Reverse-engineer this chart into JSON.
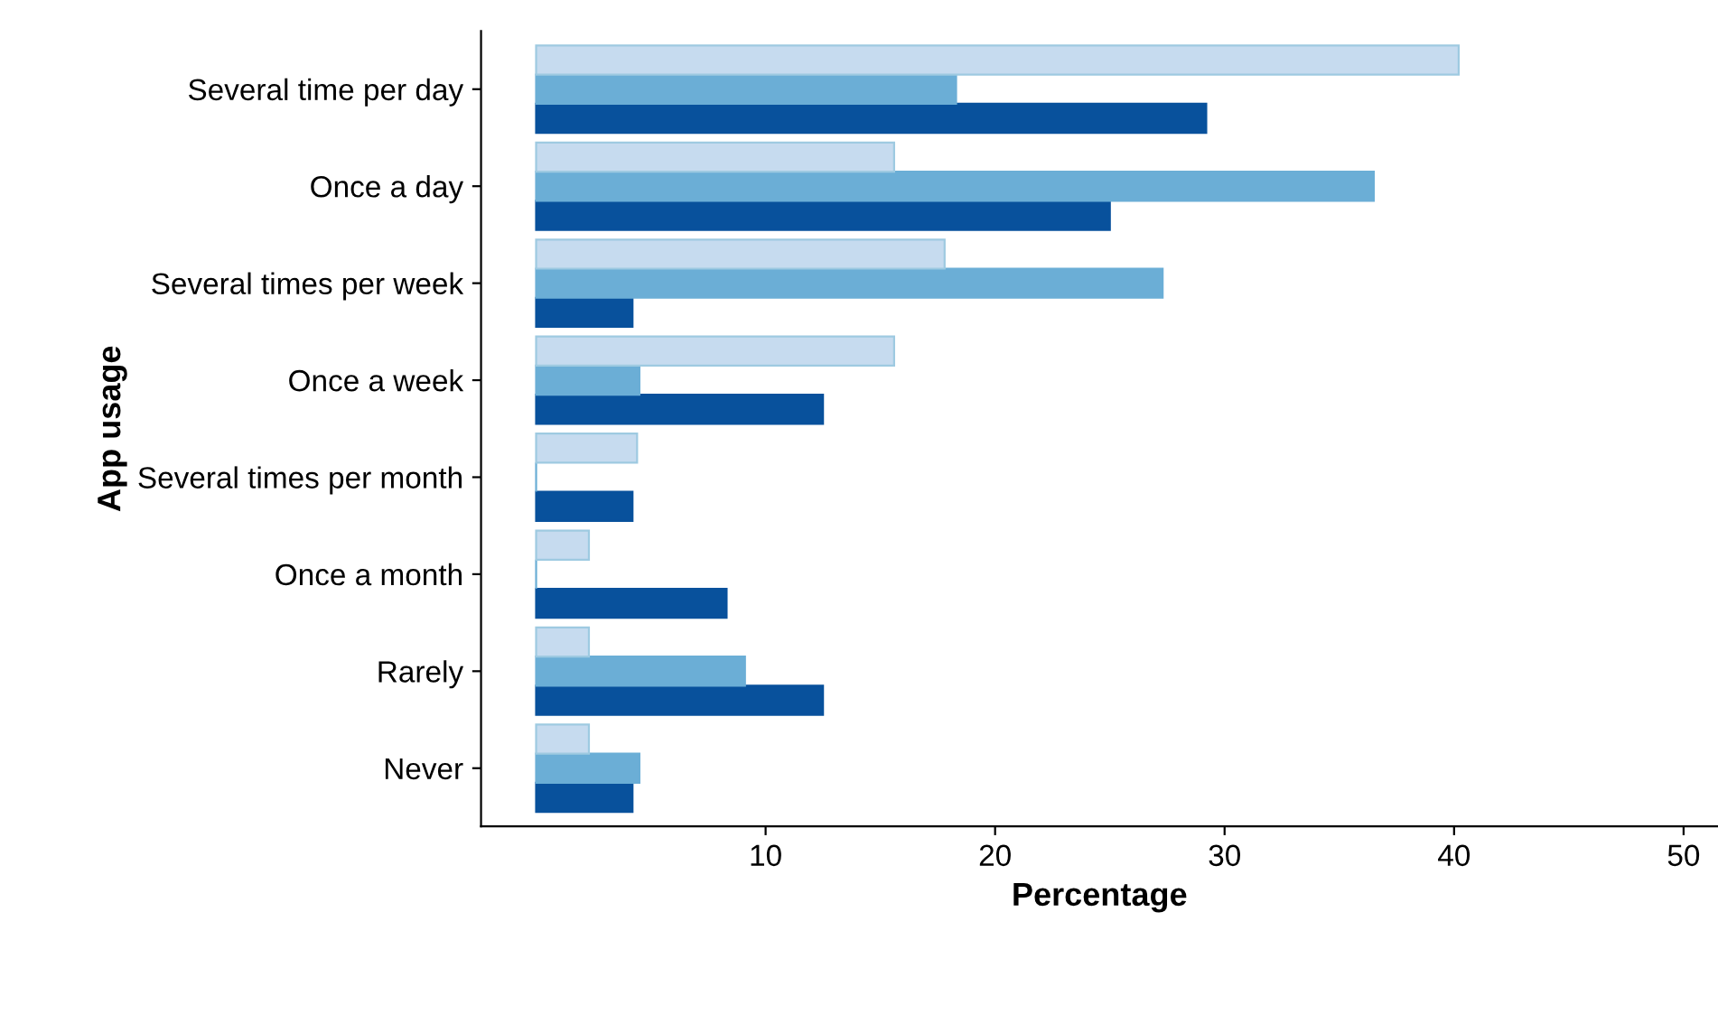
{
  "chart_data": {
    "type": "bar",
    "orientation": "horizontal",
    "xlabel": "Percentage",
    "ylabel": "App usage",
    "categories": [
      "Several time per day",
      "Once a day",
      "Several times per week",
      "Once a week",
      "Several times per month",
      "Once a month",
      "Rarely",
      "Never"
    ],
    "series": [
      {
        "color": "#08519c",
        "values": [
          29.2,
          25.0,
          4.2,
          12.5,
          4.2,
          8.3,
          12.5,
          4.2
        ]
      },
      {
        "color": "#6baed6",
        "values": [
          18.3,
          36.5,
          27.3,
          4.5,
          0,
          0,
          9.1,
          4.5
        ]
      },
      {
        "color": "#c6dbef",
        "values": [
          40.2,
          15.6,
          17.8,
          15.6,
          4.4,
          2.3,
          2.3,
          2.3
        ]
      }
    ],
    "xlim": [
      -2.4,
      51.5
    ],
    "xticks": [
      10,
      20,
      30,
      40,
      50
    ],
    "grid": false,
    "legend": false
  }
}
